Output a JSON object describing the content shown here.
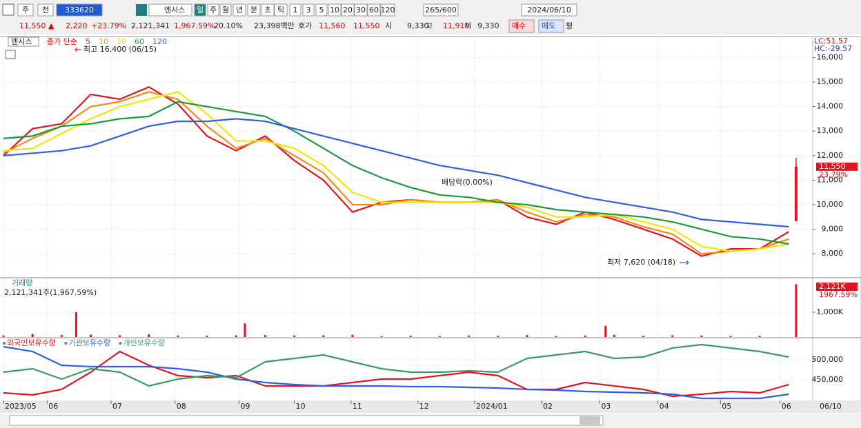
{
  "toolbar": [
    "주",
    "전",
    "333620",
    "엔시스",
    "일",
    "주",
    "월",
    "년",
    "분",
    "초",
    "틱",
    "1",
    "3",
    "5",
    "10",
    "20",
    "30",
    "60",
    "120",
    "265/600",
    "2024/06/10"
  ],
  "quote_bar": [
    "11,550 ▲",
    "2,220",
    "+23.79%",
    "2,121,341",
    "1,967.59%",
    "20.10%",
    "23,398백만",
    "호가",
    "11,560",
    "11,550",
    "시",
    "9,330",
    "고",
    "11,910",
    "저",
    "9,330",
    "매수",
    "매도",
    "평"
  ],
  "x_end_label": "06/10",
  "chart_data": [
    {
      "type": "line",
      "name": "엔시스",
      "legend_title": "종가 단순",
      "right_top": [
        "LC:51.57",
        "HC:-29.57"
      ],
      "xlim": [
        0,
        55.5
      ],
      "xticks": [
        {
          "value": 0,
          "label": "2023/05"
        },
        {
          "value": 3,
          "label": "06"
        },
        {
          "value": 7.4,
          "label": "07"
        },
        {
          "value": 11.8,
          "label": "08"
        },
        {
          "value": 16.2,
          "label": "09"
        },
        {
          "value": 20,
          "label": "10"
        },
        {
          "value": 23.9,
          "label": "11"
        },
        {
          "value": 28.5,
          "label": "12"
        },
        {
          "value": 32.4,
          "label": "2024/01"
        },
        {
          "value": 37,
          "label": "02"
        },
        {
          "value": 41,
          "label": "03"
        },
        {
          "value": 45,
          "label": "04"
        },
        {
          "value": 49.3,
          "label": "05"
        },
        {
          "value": 53.4,
          "label": "06"
        }
      ],
      "ylim": [
        7050,
        16800
      ],
      "yticks": [
        {
          "value": 8000,
          "label": "8,000"
        },
        {
          "value": 9000,
          "label": "9,000"
        },
        {
          "value": 10000,
          "label": "10,000"
        },
        {
          "value": 11000,
          "label": "11,000"
        },
        {
          "value": 12000,
          "label": "12,000"
        },
        {
          "value": 13000,
          "label": "13,000"
        },
        {
          "value": 14000,
          "label": "14,000"
        },
        {
          "value": 15000,
          "label": "15,000"
        },
        {
          "value": 16000,
          "label": "16,000"
        }
      ],
      "grid": true,
      "x": [
        0,
        2,
        4,
        6,
        8,
        10,
        12,
        14,
        16,
        18,
        20,
        22,
        24,
        26,
        28,
        30,
        32,
        34,
        36,
        38,
        40,
        42,
        44,
        46,
        48,
        50,
        52,
        54
      ],
      "series": [
        {
          "name": "5",
          "color": "#e0141e",
          "values": [
            12000,
            13100,
            13300,
            14500,
            14300,
            14800,
            14100,
            12800,
            12200,
            12800,
            11800,
            11000,
            9700,
            10100,
            10200,
            10100,
            10100,
            10200,
            9500,
            9200,
            9700,
            9400,
            9000,
            8600,
            7900,
            8200,
            8200,
            8900
          ]
        },
        {
          "name": "10",
          "color": "#f08a1c",
          "values": [
            12100,
            12700,
            13200,
            14000,
            14200,
            14600,
            14300,
            13200,
            12300,
            12700,
            12000,
            11300,
            10000,
            10000,
            10200,
            10100,
            10100,
            10200,
            9700,
            9300,
            9600,
            9500,
            9100,
            8800,
            8000,
            8100,
            8200,
            8600
          ]
        },
        {
          "name": "20",
          "color": "#f2e600",
          "values": [
            12200,
            12300,
            12900,
            13500,
            14000,
            14300,
            14600,
            13700,
            12600,
            12600,
            12300,
            11600,
            10500,
            10100,
            10100,
            10100,
            10100,
            10100,
            9900,
            9500,
            9500,
            9600,
            9300,
            9000,
            8300,
            8100,
            8200,
            8400
          ]
        },
        {
          "name": "60",
          "color": "#1a9a3a",
          "values": [
            12700,
            12800,
            13200,
            13300,
            13500,
            13600,
            14200,
            14000,
            13800,
            13600,
            13000,
            12300,
            11600,
            11100,
            10700,
            10400,
            10300,
            10100,
            10000,
            9800,
            9700,
            9600,
            9500,
            9300,
            9000,
            8700,
            8600,
            8400
          ]
        },
        {
          "name": "120",
          "color": "#2f5fe0",
          "values": [
            12000,
            12100,
            12200,
            12400,
            12800,
            13200,
            13400,
            13400,
            13500,
            13400,
            13100,
            12800,
            12500,
            12200,
            11900,
            11600,
            11400,
            11200,
            10900,
            10600,
            10300,
            10100,
            9900,
            9700,
            9400,
            9300,
            9200,
            9100
          ]
        }
      ],
      "last_candle": {
        "x": 54.5,
        "open": 9330,
        "high": 11910,
        "low": 9330,
        "close": 11550,
        "color": "#e0141e"
      },
      "price_label": "11,550",
      "change_label": "23.79%",
      "annotations": [
        "최고 16,400 (06/15)",
        "최저 7,620 (04/18)",
        "배당락(0.00%)"
      ]
    },
    {
      "type": "bar",
      "name": "거래량",
      "info": "2,121,341주(1,967.59%)",
      "right_labels": [
        "2,121K",
        "1967.59%"
      ],
      "color": "#e0141e",
      "ylim": [
        0,
        2330000
      ],
      "yticks": [
        {
          "value": 1000000,
          "label": "1,000K"
        }
      ],
      "grid": true,
      "x": [
        0,
        2,
        4,
        5,
        6,
        8,
        10,
        12,
        14,
        16,
        16.6,
        18,
        20,
        22,
        24,
        26,
        28,
        30,
        32,
        34,
        36,
        38,
        40,
        41.4,
        42,
        44,
        46,
        48,
        50,
        52,
        54.5
      ],
      "values": [
        60000,
        120000,
        80000,
        1000000,
        90000,
        70000,
        110000,
        60000,
        50000,
        70000,
        550000,
        80000,
        60000,
        70000,
        90000,
        40000,
        50000,
        40000,
        60000,
        50000,
        80000,
        40000,
        60000,
        450000,
        90000,
        50000,
        70000,
        60000,
        40000,
        50000,
        2121341
      ]
    },
    {
      "type": "line",
      "ylim": [
        400000,
        551700
      ],
      "yticks": [
        {
          "value": 450000,
          "label": "450,000"
        },
        {
          "value": 500000,
          "label": "500,000"
        }
      ],
      "grid": true,
      "x": [
        0,
        2,
        4,
        6,
        8,
        10,
        12,
        14,
        16,
        18,
        20,
        22,
        24,
        26,
        28,
        30,
        32,
        34,
        36,
        38,
        40,
        42,
        44,
        46,
        48,
        50,
        52,
        54
      ],
      "series": [
        {
          "name": "외국인보유수량",
          "color": "#e0141e",
          "values": [
            417200,
            412100,
            425900,
            469000,
            520700,
            486200,
            460300,
            455200,
            460300,
            434500,
            434500,
            434500,
            443100,
            451700,
            451700,
            460300,
            469000,
            460300,
            425900,
            425900,
            443100,
            434500,
            425900,
            408600,
            413800,
            420700,
            417200,
            437900
          ]
        },
        {
          "name": "기관보유수량",
          "color": "#2f5fe0",
          "values": [
            532800,
            520700,
            486200,
            482800,
            482800,
            482800,
            477600,
            469000,
            451700,
            443100,
            437900,
            434500,
            434500,
            434500,
            432800,
            432800,
            431000,
            429300,
            425900,
            424100,
            420700,
            419000,
            417200,
            413800,
            403400,
            403400,
            403400,
            413800
          ]
        },
        {
          "name": "개인보유수량",
          "color": "#3a9a66",
          "values": [
            469000,
            477600,
            451700,
            477600,
            469000,
            434500,
            451700,
            460300,
            455200,
            494800,
            503400,
            512100,
            494800,
            477600,
            469000,
            469000,
            472400,
            469000,
            503400,
            512100,
            520700,
            503400,
            506900,
            529300,
            537900,
            529300,
            520700,
            506900
          ]
        }
      ]
    }
  ]
}
